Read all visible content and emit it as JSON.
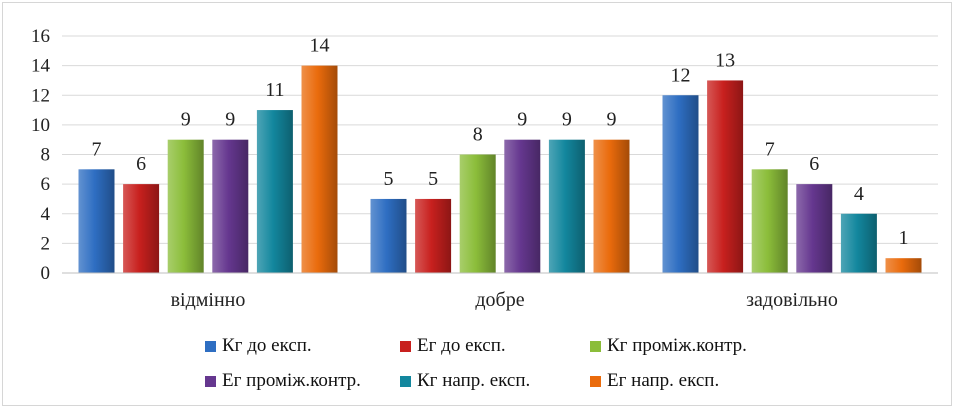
{
  "chart_data": {
    "type": "bar",
    "categories": [
      "відмінно",
      "добре",
      "задовільно"
    ],
    "series": [
      {
        "name": "Кг до експ.",
        "values": [
          7,
          5,
          12
        ],
        "color": "#2e6ec2"
      },
      {
        "name": "Ег до експ.",
        "values": [
          6,
          5,
          13
        ],
        "color": "#c8201e"
      },
      {
        "name": "Кг проміж.контр.",
        "values": [
          9,
          8,
          7
        ],
        "color": "#8bbd3a"
      },
      {
        "name": "Ег проміж.контр.",
        "values": [
          9,
          9,
          6
        ],
        "color": "#65378f"
      },
      {
        "name": "Кг напр. експ.",
        "values": [
          11,
          9,
          4
        ],
        "color": "#13879e"
      },
      {
        "name": "Ег напр. експ.",
        "values": [
          14,
          9,
          1
        ],
        "color": "#ea6b0c"
      }
    ],
    "ylim": [
      0,
      16
    ],
    "yticks": [
      0,
      2,
      4,
      6,
      8,
      10,
      12,
      14,
      16
    ],
    "grid": true,
    "legend_position": "bottom",
    "data_labels": true
  }
}
